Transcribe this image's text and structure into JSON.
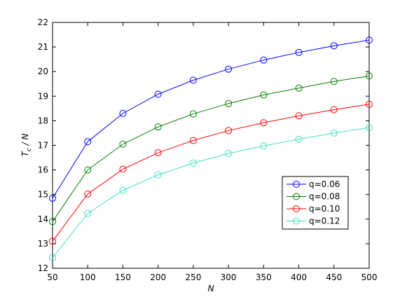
{
  "chart_data": {
    "type": "line",
    "xlabel": "N",
    "ylabel": [
      "T",
      "c",
      " / N"
    ],
    "x": [
      50,
      100,
      150,
      200,
      250,
      300,
      350,
      400,
      450,
      500
    ],
    "series": [
      {
        "name": "q=0.06",
        "color": "#0000ff",
        "values": [
          14.85,
          17.15,
          18.3,
          19.08,
          19.65,
          20.1,
          20.47,
          20.78,
          21.05,
          21.28
        ]
      },
      {
        "name": "q=0.08",
        "color": "#008000",
        "values": [
          13.9,
          16.0,
          17.05,
          17.75,
          18.28,
          18.7,
          19.05,
          19.33,
          19.6,
          19.82
        ]
      },
      {
        "name": "q=0.10",
        "color": "#ff0000",
        "values": [
          13.1,
          15.02,
          16.03,
          16.7,
          17.2,
          17.6,
          17.92,
          18.2,
          18.45,
          18.67
        ]
      },
      {
        "name": "q=0.12",
        "color": "#40e0c0",
        "values": [
          12.43,
          14.23,
          15.17,
          15.8,
          16.28,
          16.67,
          16.98,
          17.25,
          17.5,
          17.72
        ]
      }
    ],
    "xlim": [
      50,
      500
    ],
    "xticks": [
      50,
      100,
      150,
      200,
      250,
      300,
      350,
      400,
      450,
      500
    ],
    "ylim": [
      12,
      22
    ],
    "yticks": [
      12,
      13,
      14,
      15,
      16,
      17,
      18,
      19,
      20,
      21,
      22
    ],
    "grid": false,
    "legend": "lower right"
  }
}
